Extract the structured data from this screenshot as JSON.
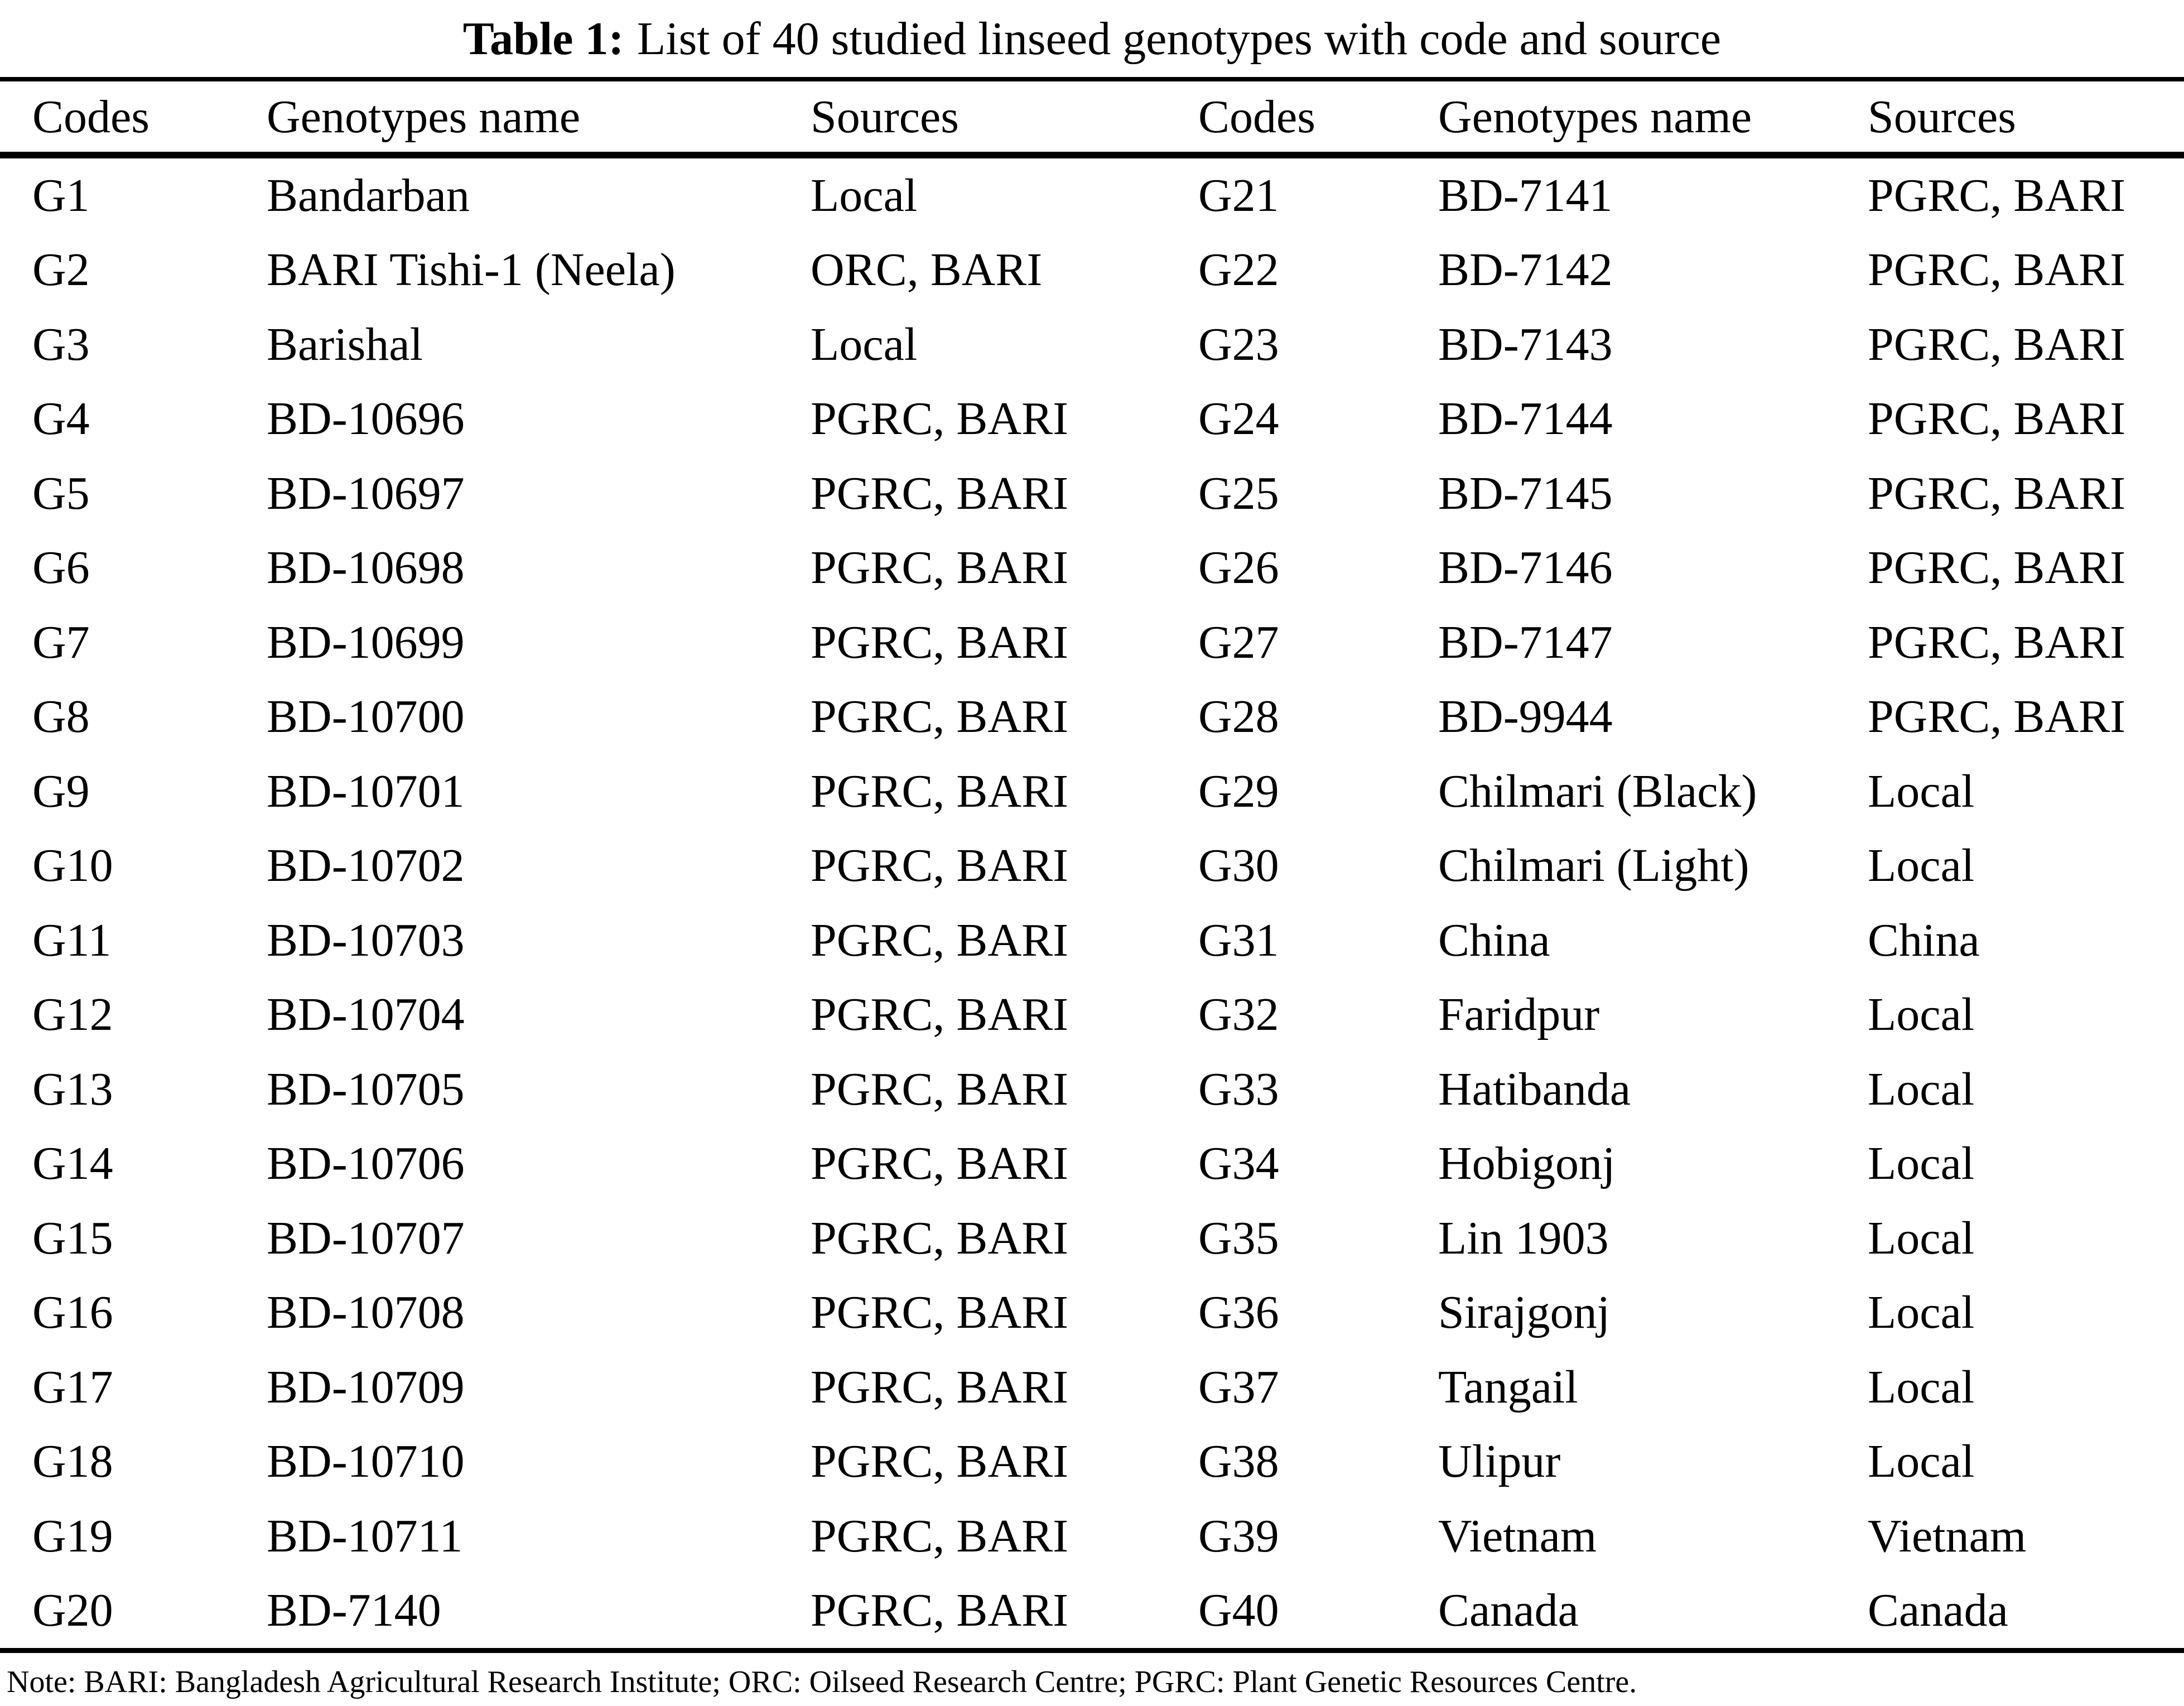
{
  "title": {
    "label": "Table 1:",
    "text": "List of 40 studied linseed genotypes with code and source"
  },
  "table": {
    "columns": [
      "Codes",
      "Genotypes name",
      "Sources",
      "Codes",
      "Genotypes name",
      "Sources"
    ],
    "rows": [
      [
        "G1",
        "Bandarban",
        "Local",
        "G21",
        "BD-7141",
        "PGRC, BARI"
      ],
      [
        "G2",
        "BARI Tishi-1 (Neela)",
        "ORC, BARI",
        "G22",
        "BD-7142",
        "PGRC, BARI"
      ],
      [
        "G3",
        "Barishal",
        "Local",
        "G23",
        "BD-7143",
        "PGRC, BARI"
      ],
      [
        "G4",
        "BD-10696",
        "PGRC, BARI",
        "G24",
        "BD-7144",
        "PGRC, BARI"
      ],
      [
        "G5",
        "BD-10697",
        "PGRC, BARI",
        "G25",
        "BD-7145",
        "PGRC, BARI"
      ],
      [
        "G6",
        "BD-10698",
        "PGRC, BARI",
        "G26",
        "BD-7146",
        "PGRC, BARI"
      ],
      [
        "G7",
        "BD-10699",
        "PGRC, BARI",
        "G27",
        "BD-7147",
        "PGRC, BARI"
      ],
      [
        "G8",
        "BD-10700",
        "PGRC, BARI",
        "G28",
        "BD-9944",
        "PGRC, BARI"
      ],
      [
        "G9",
        "BD-10701",
        "PGRC, BARI",
        "G29",
        "Chilmari (Black)",
        "Local"
      ],
      [
        "G10",
        "BD-10702",
        "PGRC, BARI",
        "G30",
        "Chilmari (Light)",
        "Local"
      ],
      [
        "G11",
        "BD-10703",
        "PGRC, BARI",
        "G31",
        "China",
        "China"
      ],
      [
        "G12",
        "BD-10704",
        "PGRC, BARI",
        "G32",
        "Faridpur",
        "Local"
      ],
      [
        "G13",
        "BD-10705",
        "PGRC, BARI",
        "G33",
        "Hatibanda",
        "Local"
      ],
      [
        "G14",
        "BD-10706",
        "PGRC, BARI",
        "G34",
        "Hobigonj",
        "Local"
      ],
      [
        "G15",
        "BD-10707",
        "PGRC, BARI",
        "G35",
        "Lin 1903",
        "Local"
      ],
      [
        "G16",
        "BD-10708",
        "PGRC, BARI",
        "G36",
        "Sirajgonj",
        "Local"
      ],
      [
        "G17",
        "BD-10709",
        "PGRC, BARI",
        "G37",
        "Tangail",
        "Local"
      ],
      [
        "G18",
        "BD-10710",
        "PGRC, BARI",
        "G38",
        "Ulipur",
        "Local"
      ],
      [
        "G19",
        "BD-10711",
        "PGRC, BARI",
        "G39",
        "Vietnam",
        "Vietnam"
      ],
      [
        "G20",
        "BD-7140",
        "PGRC, BARI",
        "G40",
        "Canada",
        "Canada"
      ]
    ]
  },
  "note": "Note: BARI: Bangladesh Agricultural Research Institute; ORC: Oilseed Research Centre; PGRC: Plant Genetic Resources Centre."
}
